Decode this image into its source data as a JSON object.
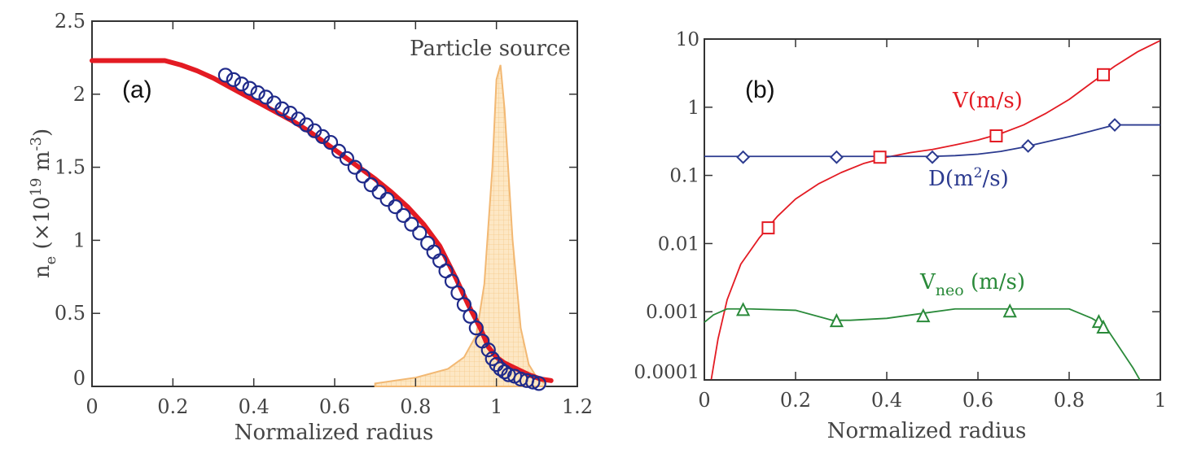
{
  "chart_data": [
    {
      "type": "line",
      "panel_label": "(a)",
      "xlabel": "Normalized radius",
      "ylabel_main": "n",
      "ylabel_sub": "e",
      "ylabel_rest": " (×10",
      "ylabel_exp1": "19",
      "ylabel_unit": " m",
      "ylabel_exp2": "-3",
      "ylabel_close": ")",
      "xlim": [
        0,
        1.2
      ],
      "ylim": [
        0,
        2.5
      ],
      "xticks": [
        "0",
        "0.2",
        "0.4",
        "0.6",
        "0.8",
        "1",
        "1.2"
      ],
      "yticks": [
        "0",
        "0.5",
        "1",
        "1.5",
        "2",
        "2.5"
      ],
      "xtick_values": [
        0,
        0.2,
        0.4,
        0.6,
        0.8,
        1.0,
        1.2
      ],
      "ytick_values": [
        0,
        0.5,
        1.0,
        1.5,
        2.0,
        2.5
      ],
      "annotations": [
        {
          "text": "Particle source"
        }
      ],
      "series": [
        {
          "style": "line",
          "color": "#e31b23",
          "x": [
            0,
            0.1,
            0.18,
            0.22,
            0.26,
            0.3,
            0.34,
            0.38,
            0.42,
            0.46,
            0.5,
            0.54,
            0.58,
            0.62,
            0.66,
            0.7,
            0.74,
            0.78,
            0.82,
            0.86,
            0.9,
            0.93,
            0.96,
            0.98,
            1.0,
            1.02,
            1.05,
            1.08,
            1.11,
            1.135
          ],
          "y": [
            2.23,
            2.23,
            2.23,
            2.2,
            2.16,
            2.11,
            2.05,
            1.99,
            1.93,
            1.87,
            1.81,
            1.74,
            1.66,
            1.58,
            1.5,
            1.42,
            1.33,
            1.23,
            1.11,
            0.96,
            0.74,
            0.56,
            0.4,
            0.27,
            0.2,
            0.16,
            0.12,
            0.08,
            0.05,
            0.04
          ]
        },
        {
          "style": "markers",
          "marker": "circle",
          "color": "#1f2a8a",
          "x": [
            0.33,
            0.35,
            0.37,
            0.39,
            0.41,
            0.43,
            0.45,
            0.47,
            0.49,
            0.51,
            0.53,
            0.55,
            0.57,
            0.59,
            0.61,
            0.63,
            0.65,
            0.67,
            0.69,
            0.71,
            0.73,
            0.75,
            0.77,
            0.79,
            0.81,
            0.83,
            0.845,
            0.86,
            0.875,
            0.89,
            0.905,
            0.92,
            0.935,
            0.95,
            0.965,
            0.98,
            0.99,
            1.0,
            1.01,
            1.02,
            1.03,
            1.045,
            1.06,
            1.075,
            1.09,
            1.105
          ],
          "y": [
            2.13,
            2.1,
            2.07,
            2.04,
            2.01,
            1.98,
            1.94,
            1.9,
            1.87,
            1.83,
            1.79,
            1.75,
            1.71,
            1.67,
            1.61,
            1.56,
            1.5,
            1.44,
            1.38,
            1.33,
            1.28,
            1.23,
            1.17,
            1.11,
            1.05,
            0.98,
            0.92,
            0.86,
            0.79,
            0.72,
            0.64,
            0.56,
            0.48,
            0.4,
            0.31,
            0.25,
            0.19,
            0.15,
            0.12,
            0.1,
            0.08,
            0.07,
            0.05,
            0.04,
            0.03,
            0.02
          ]
        },
        {
          "style": "area",
          "color": "#f5a623",
          "x": [
            0.7,
            0.8,
            0.88,
            0.92,
            0.95,
            0.97,
            0.99,
            1.0,
            1.01,
            1.02,
            1.04,
            1.06,
            1.08,
            1.1,
            1.12
          ],
          "y": [
            0.02,
            0.06,
            0.12,
            0.2,
            0.35,
            0.7,
            1.5,
            2.1,
            2.2,
            1.9,
            1.0,
            0.4,
            0.15,
            0.06,
            0.02
          ]
        }
      ]
    },
    {
      "type": "line",
      "panel_label": "(b)",
      "xlabel": "Normalized radius",
      "xlim": [
        0,
        1
      ],
      "ylim": [
        0.0001,
        10
      ],
      "yscale": "log",
      "xticks": [
        "0",
        "0.2",
        "0.4",
        "0.6",
        "0.8",
        "1"
      ],
      "yticks": [
        "0.0001",
        "0.001",
        "0.01",
        "0.1",
        "1",
        "10"
      ],
      "xtick_values": [
        0,
        0.2,
        0.4,
        0.6,
        0.8,
        1.0
      ],
      "ytick_values": [
        0.0001,
        0.001,
        0.01,
        0.1,
        1,
        10
      ],
      "series_labels": {
        "V": "V(m/s)",
        "D_pre": "D(m",
        "D_exp": "2",
        "D_post": "/s)",
        "Vneo_main": "V",
        "Vneo_sub": "neo",
        "Vneo_rest": " (m/s)"
      },
      "series": [
        {
          "name": "V(m/s)",
          "color": "#e31b23",
          "marker": "square",
          "x": [
            0.015,
            0.03,
            0.05,
            0.08,
            0.12,
            0.16,
            0.2,
            0.25,
            0.3,
            0.35,
            0.4,
            0.45,
            0.5,
            0.55,
            0.6,
            0.65,
            0.7,
            0.75,
            0.8,
            0.85,
            0.9,
            0.95,
            1.0
          ],
          "y": [
            0.0001,
            0.0004,
            0.0015,
            0.005,
            0.012,
            0.025,
            0.045,
            0.075,
            0.11,
            0.15,
            0.185,
            0.215,
            0.24,
            0.28,
            0.33,
            0.41,
            0.55,
            0.82,
            1.3,
            2.3,
            4.0,
            6.5,
            9.5
          ],
          "markers_x": [
            0.14,
            0.385,
            0.64,
            0.875
          ],
          "markers_y": [
            0.017,
            0.185,
            0.38,
            3.0
          ]
        },
        {
          "name": "D(m2/s)",
          "color": "#2b3a8f",
          "marker": "diamond",
          "x": [
            0,
            0.1,
            0.2,
            0.3,
            0.4,
            0.5,
            0.55,
            0.6,
            0.65,
            0.7,
            0.75,
            0.8,
            0.85,
            0.9,
            1.0
          ],
          "y": [
            0.19,
            0.19,
            0.19,
            0.19,
            0.19,
            0.19,
            0.195,
            0.205,
            0.225,
            0.26,
            0.31,
            0.37,
            0.45,
            0.55,
            0.55
          ],
          "markers_x": [
            0.085,
            0.29,
            0.5,
            0.71,
            0.9
          ],
          "markers_y": [
            0.185,
            0.185,
            0.185,
            0.27,
            0.55
          ]
        },
        {
          "name": "Vneo (m/s)",
          "color": "#2a8a3a",
          "marker": "triangle",
          "x": [
            0,
            0.02,
            0.05,
            0.1,
            0.2,
            0.28,
            0.32,
            0.4,
            0.48,
            0.55,
            0.6,
            0.7,
            0.8,
            0.85,
            0.88,
            0.91,
            0.94,
            0.955
          ],
          "y": [
            0.0007,
            0.0009,
            0.0011,
            0.0011,
            0.00105,
            0.00075,
            0.00075,
            0.0008,
            0.00095,
            0.0011,
            0.0011,
            0.0011,
            0.0011,
            0.0008,
            0.0006,
            0.0003,
            0.00015,
            0.0001
          ],
          "markers_x": [
            0.085,
            0.29,
            0.48,
            0.67,
            0.865,
            0.875
          ],
          "markers_y": [
            0.00105,
            0.00072,
            0.00085,
            0.001,
            0.0007,
            0.00058
          ]
        }
      ]
    }
  ]
}
